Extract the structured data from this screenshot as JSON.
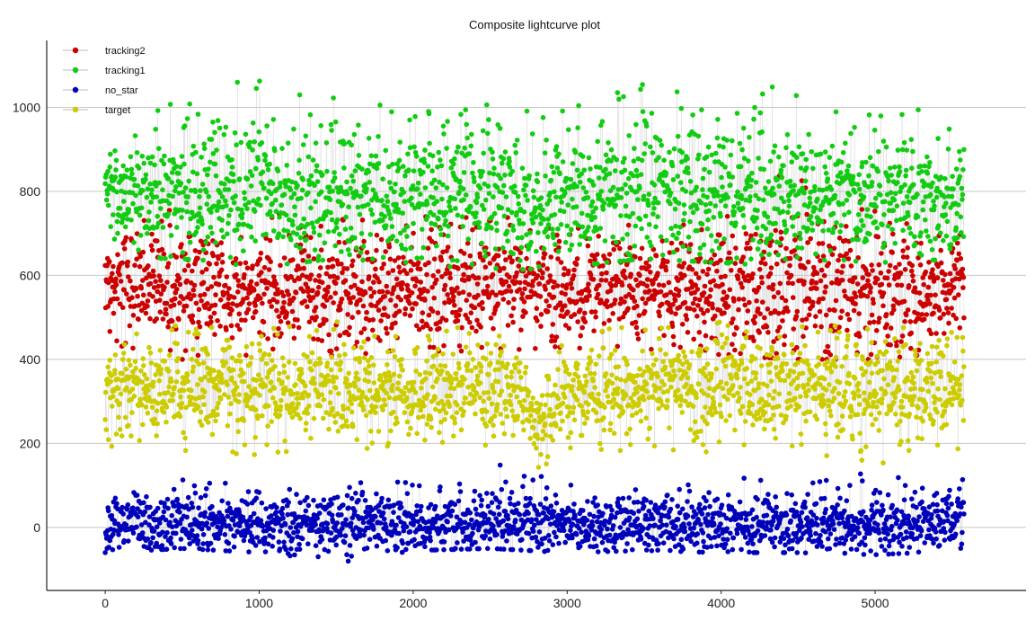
{
  "chart_data": {
    "type": "scatter",
    "title": "Composite lightcurve plot",
    "xlabel": "",
    "ylabel": "",
    "xlim": [
      -380,
      5980
    ],
    "ylim": [
      -150,
      1170
    ],
    "x_ticks": [
      0,
      1000,
      2000,
      3000,
      4000,
      5000
    ],
    "y_ticks": [
      0,
      200,
      400,
      600,
      800,
      1000
    ],
    "grid": "horizontal",
    "legend_position": "top-left",
    "marker_style": "dots joined by thin grey lines",
    "n_points_per_series": 5580,
    "series": [
      {
        "name": "tracking2",
        "color": "#cc0000",
        "x": [
          0,
          500,
          1000,
          1500,
          2000,
          2500,
          3000,
          3500,
          4000,
          4500,
          5000,
          5580
        ],
        "y_mean": [
          570,
          575,
          565,
          570,
          575,
          570,
          560,
          570,
          565,
          570,
          560,
          565
        ],
        "y_min": [
          440,
          400,
          400,
          410,
          420,
          420,
          430,
          410,
          410,
          400,
          400,
          420
        ],
        "y_max": [
          740,
          760,
          740,
          760,
          740,
          740,
          730,
          740,
          760,
          890,
          760,
          740
        ]
      },
      {
        "name": "tracking1",
        "color": "#11cc11",
        "x": [
          0,
          500,
          1000,
          1500,
          2000,
          2500,
          3000,
          3500,
          4000,
          4500,
          5000,
          5580
        ],
        "y_mean": [
          790,
          800,
          790,
          795,
          800,
          790,
          780,
          795,
          800,
          790,
          790,
          790
        ],
        "y_min": [
          640,
          640,
          620,
          640,
          630,
          610,
          620,
          640,
          630,
          620,
          630,
          640
        ],
        "y_max": [
          950,
          1030,
          1090,
          1050,
          1000,
          1040,
          990,
          1090,
          1070,
          1040,
          1020,
          980
        ]
      },
      {
        "name": "no_star",
        "color": "#0000bb",
        "x": [
          0,
          500,
          1000,
          1500,
          2000,
          2500,
          3000,
          3500,
          4000,
          4500,
          5000,
          5580
        ],
        "y_mean": [
          10,
          10,
          10,
          10,
          10,
          10,
          10,
          10,
          10,
          10,
          10,
          10
        ],
        "y_min": [
          -60,
          -50,
          -60,
          -85,
          -55,
          -50,
          -60,
          -55,
          -60,
          -60,
          -65,
          -55
        ],
        "y_max": [
          120,
          130,
          120,
          105,
          110,
          170,
          105,
          130,
          120,
          120,
          130,
          130
        ]
      },
      {
        "name": "target",
        "color": "#cccc00",
        "x": [
          0,
          500,
          1000,
          1500,
          2000,
          2500,
          2700,
          2800,
          2850,
          2900,
          3000,
          3500,
          4000,
          4500,
          5000,
          5580
        ],
        "y_mean": [
          330,
          330,
          325,
          330,
          320,
          325,
          320,
          240,
          230,
          280,
          320,
          330,
          330,
          330,
          320,
          330
        ],
        "y_min": [
          190,
          180,
          170,
          180,
          200,
          180,
          190,
          150,
          125,
          180,
          190,
          180,
          180,
          180,
          150,
          190
        ],
        "y_max": [
          480,
          480,
          470,
          490,
          470,
          480,
          470,
          380,
          360,
          420,
          490,
          470,
          490,
          480,
          480,
          470
        ]
      }
    ]
  }
}
